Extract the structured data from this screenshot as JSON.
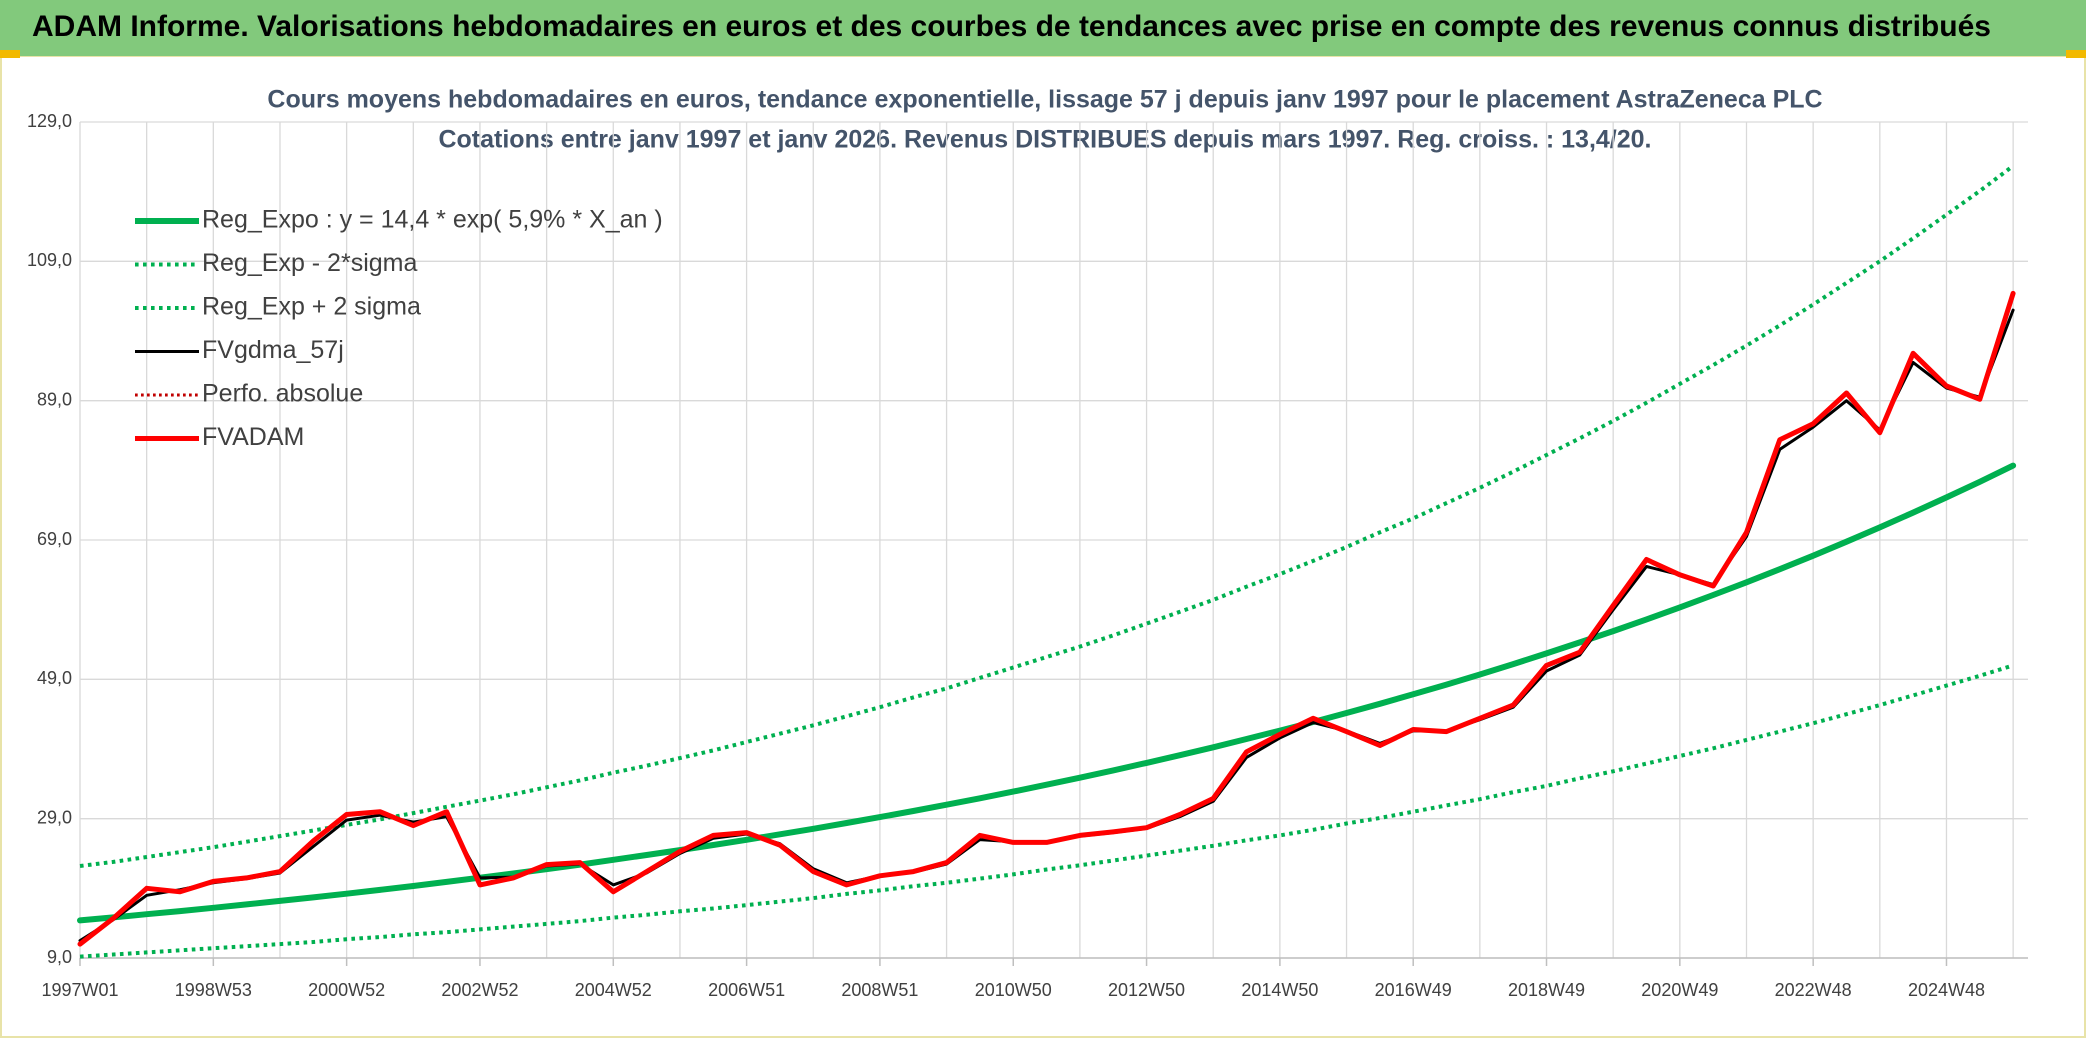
{
  "header": {
    "title": "ADAM Informe. Valorisations hebdomadaires en euros et des courbes de tendances avec prise en compte des revenus connus distribués"
  },
  "chart_data": {
    "type": "line",
    "title": "Cours moyens hebdomadaires en euros, tendance exponentielle, lissage 57 j depuis janv 1997 pour le placement AstraZeneca PLC",
    "subtitle": "Cotations entre janv 1997 et janv 2026. Revenus DISTRIBUES depuis mars 1997. Reg. croiss. : 13,4/20.",
    "categories": [
      "1997W01",
      null,
      null,
      null,
      "1998W53",
      null,
      null,
      null,
      "2000W52",
      null,
      null,
      null,
      "2002W52",
      null,
      null,
      null,
      "2004W52",
      null,
      null,
      null,
      "2006W51",
      null,
      null,
      null,
      "2008W51",
      null,
      null,
      null,
      "2010W50",
      null,
      null,
      null,
      "2012W50",
      null,
      null,
      null,
      "2014W50",
      null,
      null,
      null,
      "2016W49",
      null,
      null,
      null,
      "2018W49",
      null,
      null,
      null,
      "2020W49",
      null,
      null,
      null,
      "2022W48",
      null,
      null,
      null,
      "2024W48",
      null,
      null
    ],
    "ylim": [
      9,
      129
    ],
    "yticks": [
      {
        "value": 9,
        "label": "9,0"
      },
      {
        "value": 29,
        "label": "29,0"
      },
      {
        "value": 49,
        "label": "49,0"
      },
      {
        "value": 69,
        "label": "69,0"
      },
      {
        "value": 89,
        "label": "89,0"
      },
      {
        "value": 109,
        "label": "109,0"
      },
      {
        "value": 129,
        "label": "129,0"
      }
    ],
    "grid": true,
    "legend": "top-left",
    "series": [
      {
        "name": "Reg_Expo : y = 14,4 * exp( 5,9% *  X_an )",
        "color": "#00b050",
        "style": "solid",
        "width": 6,
        "values": [
          14.4,
          14.83,
          15.28,
          15.73,
          16.2,
          16.69,
          17.19,
          17.7,
          18.23,
          18.78,
          19.34,
          19.92,
          20.52,
          21.13,
          21.76,
          22.41,
          23.09,
          23.78,
          24.49,
          25.22,
          25.97,
          26.75,
          27.55,
          28.38,
          29.23,
          30.1,
          31.0,
          31.93,
          32.89,
          33.87,
          34.88,
          35.93,
          37.0,
          38.11,
          39.25,
          40.43,
          41.64,
          42.88,
          44.17,
          45.49,
          46.85,
          48.25,
          49.7,
          51.19,
          52.72,
          54.3,
          55.92,
          57.6,
          59.32,
          61.1,
          62.93,
          64.81,
          66.75,
          68.75,
          70.81,
          72.93,
          75.11,
          77.36,
          79.68
        ]
      },
      {
        "name": "Reg_Exp - 2*sigma",
        "color": "#00b050",
        "style": "dotted",
        "width": 4,
        "values": [
          22.2,
          22.8,
          23.5,
          24.2,
          24.9,
          25.7,
          26.5,
          27.3,
          28.1,
          28.9,
          29.8,
          30.7,
          31.6,
          32.5,
          33.5,
          34.5,
          35.6,
          36.6,
          37.7,
          38.8,
          40.0,
          41.2,
          42.4,
          43.7,
          45.0,
          46.4,
          47.7,
          49.2,
          50.7,
          52.2,
          53.7,
          55.3,
          57.0,
          58.7,
          60.4,
          62.3,
          64.1,
          66.0,
          68.0,
          70.1,
          72.1,
          74.3,
          76.5,
          78.8,
          81.2,
          83.6,
          86.1,
          88.7,
          91.4,
          94.1,
          96.9,
          99.8,
          102.8,
          105.9,
          109.0,
          112.3,
          115.7,
          119.1,
          122.7
        ]
      },
      {
        "name": "Reg_Exp + 2 sigma",
        "color": "#00b050",
        "style": "dotted",
        "width": 4,
        "values": [
          9.2,
          9.5,
          9.8,
          10.1,
          10.4,
          10.7,
          11.0,
          11.3,
          11.7,
          12.0,
          12.4,
          12.7,
          13.1,
          13.5,
          13.9,
          14.3,
          14.8,
          15.2,
          15.7,
          16.1,
          16.6,
          17.1,
          17.6,
          18.2,
          18.7,
          19.3,
          19.8,
          20.4,
          21.0,
          21.7,
          22.3,
          23.0,
          23.7,
          24.4,
          25.1,
          25.9,
          26.6,
          27.4,
          28.3,
          29.1,
          30.0,
          30.9,
          31.8,
          32.8,
          33.7,
          34.8,
          35.8,
          36.9,
          38.0,
          39.1,
          40.3,
          41.5,
          42.7,
          44.0,
          45.3,
          46.7,
          48.1,
          49.5,
          51.0
        ]
      },
      {
        "name": "FVgdma_57j",
        "color": "#000000",
        "style": "solid",
        "width": 3,
        "values": [
          11.5,
          14.5,
          18.0,
          18.8,
          19.8,
          20.4,
          21.2,
          25.0,
          28.8,
          29.5,
          28.5,
          29.3,
          20.5,
          20.6,
          22.2,
          22.5,
          19.5,
          21.2,
          24.0,
          26.2,
          26.8,
          25.4,
          21.8,
          19.8,
          20.8,
          21.3,
          22.5,
          26.0,
          25.7,
          25.7,
          26.5,
          27.0,
          27.6,
          29.3,
          31.5,
          37.8,
          40.6,
          42.8,
          41.6,
          39.8,
          41.6,
          41.6,
          43.2,
          45.0,
          50.2,
          52.5,
          59.0,
          65.2,
          64.0,
          62.6,
          69.5,
          82.0,
          85.2,
          89.0,
          84.8,
          94.5,
          90.8,
          89.5,
          102.0
        ]
      },
      {
        "name": "Perfo. absolue",
        "color": "#c00000",
        "style": "dotted",
        "width": 3,
        "values": [
          11,
          14.7,
          19,
          18.5,
          20,
          20.5,
          21.4,
          25.8,
          29.6,
          30,
          28,
          30,
          19.5,
          20.5,
          22.4,
          22.7,
          18.5,
          21.4,
          24.3,
          26.6,
          27,
          25.2,
          21.4,
          19.5,
          20.8,
          21.4,
          22.7,
          26.6,
          25.6,
          25.6,
          26.6,
          27.1,
          27.7,
          29.6,
          31.9,
          38.6,
          41.1,
          43.4,
          41.5,
          39.5,
          41.8,
          41.5,
          43.4,
          45.3,
          51,
          52.9,
          59.6,
          66.2,
          64,
          62.4,
          70.1,
          83.4,
          85.7,
          90.1,
          84.4,
          95.8,
          91.1,
          89.2,
          104.4
        ]
      },
      {
        "name": "FVADAM",
        "color": "#ff0000",
        "style": "solid",
        "width": 5,
        "values": [
          11,
          14.7,
          19,
          18.5,
          20,
          20.5,
          21.4,
          25.8,
          29.6,
          30,
          28,
          30,
          19.5,
          20.5,
          22.4,
          22.7,
          18.5,
          21.4,
          24.3,
          26.6,
          27,
          25.2,
          21.4,
          19.5,
          20.8,
          21.4,
          22.7,
          26.6,
          25.6,
          25.6,
          26.6,
          27.1,
          27.7,
          29.6,
          31.9,
          38.6,
          41.1,
          43.4,
          41.5,
          39.5,
          41.8,
          41.5,
          43.4,
          45.3,
          51,
          52.9,
          59.6,
          66.2,
          64,
          62.4,
          70.1,
          83.4,
          85.7,
          90.1,
          84.4,
          95.8,
          91.1,
          89.2,
          104.4
        ]
      }
    ]
  }
}
